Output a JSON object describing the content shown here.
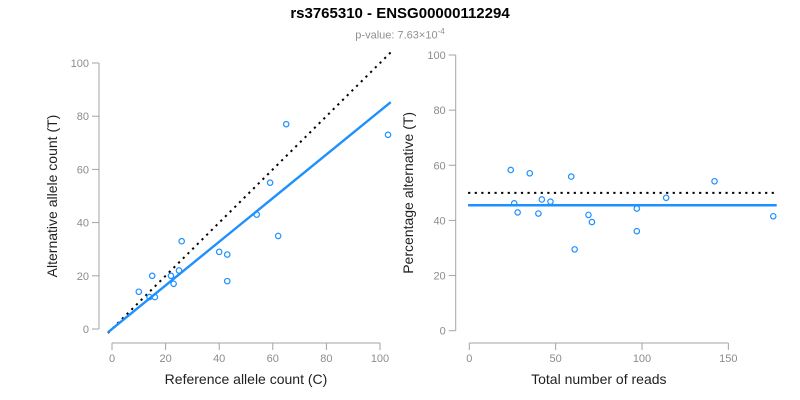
{
  "header": {
    "title": "rs3765310 - ENSG00000112294",
    "p_value_base": "p-value: 7.63×10",
    "p_value_exponent": "-4"
  },
  "colors": {
    "accent_blue": "#1E90FF",
    "dotted_line": "#000000",
    "axis_line": "#a3a3a3",
    "tick_label": "#8c8c8c",
    "axis_title": "#1f1f1f",
    "title": "#000000",
    "subtitle": "#909090",
    "background": "#ffffff"
  },
  "chart_data": [
    {
      "type": "scatter",
      "name": "allele-counts-scatter",
      "xlabel": "Reference allele count (C)",
      "ylabel": "Alternative allele count (T)",
      "xlim": [
        0,
        103
      ],
      "ylim": [
        0,
        103
      ],
      "xticks": [
        0,
        20,
        40,
        60,
        80,
        100
      ],
      "yticks": [
        0,
        20,
        40,
        60,
        80,
        100
      ],
      "grid": false,
      "point_style": "open-circle",
      "points": [
        [
          10,
          14
        ],
        [
          14,
          12
        ],
        [
          15,
          20
        ],
        [
          16,
          12
        ],
        [
          22,
          20
        ],
        [
          23,
          17
        ],
        [
          25,
          22
        ],
        [
          26,
          33
        ],
        [
          40,
          29
        ],
        [
          43,
          28
        ],
        [
          43,
          18
        ],
        [
          54,
          43
        ],
        [
          59,
          55
        ],
        [
          62,
          35
        ],
        [
          65,
          77
        ],
        [
          103,
          73
        ]
      ],
      "lines": [
        {
          "role": "identity-line",
          "style": "dotted",
          "color_key": "dotted_line",
          "slope": 1,
          "intercept": 0
        },
        {
          "role": "fit-line",
          "style": "solid",
          "color_key": "accent_blue",
          "slope": 0.82,
          "intercept": 0
        }
      ]
    },
    {
      "type": "scatter",
      "name": "percentage-vs-reads-scatter",
      "xlabel": "Total number of reads",
      "ylabel": "Percentage alternative (T)",
      "xlim": [
        0,
        178
      ],
      "ylim": [
        0,
        100
      ],
      "xticks": [
        0,
        50,
        100,
        150
      ],
      "yticks": [
        0,
        20,
        40,
        60,
        80,
        100
      ],
      "grid": false,
      "point_style": "open-circle",
      "points": [
        [
          24,
          58.3
        ],
        [
          26,
          46.2
        ],
        [
          28,
          42.9
        ],
        [
          35,
          57.1
        ],
        [
          40,
          42.5
        ],
        [
          42,
          47.6
        ],
        [
          47,
          46.8
        ],
        [
          59,
          55.9
        ],
        [
          61,
          29.5
        ],
        [
          69,
          42.0
        ],
        [
          71,
          39.4
        ],
        [
          97,
          44.3
        ],
        [
          97,
          36.1
        ],
        [
          114,
          48.2
        ],
        [
          142,
          54.2
        ],
        [
          176,
          41.5
        ]
      ],
      "lines": [
        {
          "role": "null-line",
          "style": "dotted",
          "color_key": "dotted_line",
          "slope": 0,
          "intercept": 50
        },
        {
          "role": "fit-line",
          "style": "solid",
          "color_key": "accent_blue",
          "slope": 0,
          "intercept": 45.5
        }
      ]
    }
  ]
}
